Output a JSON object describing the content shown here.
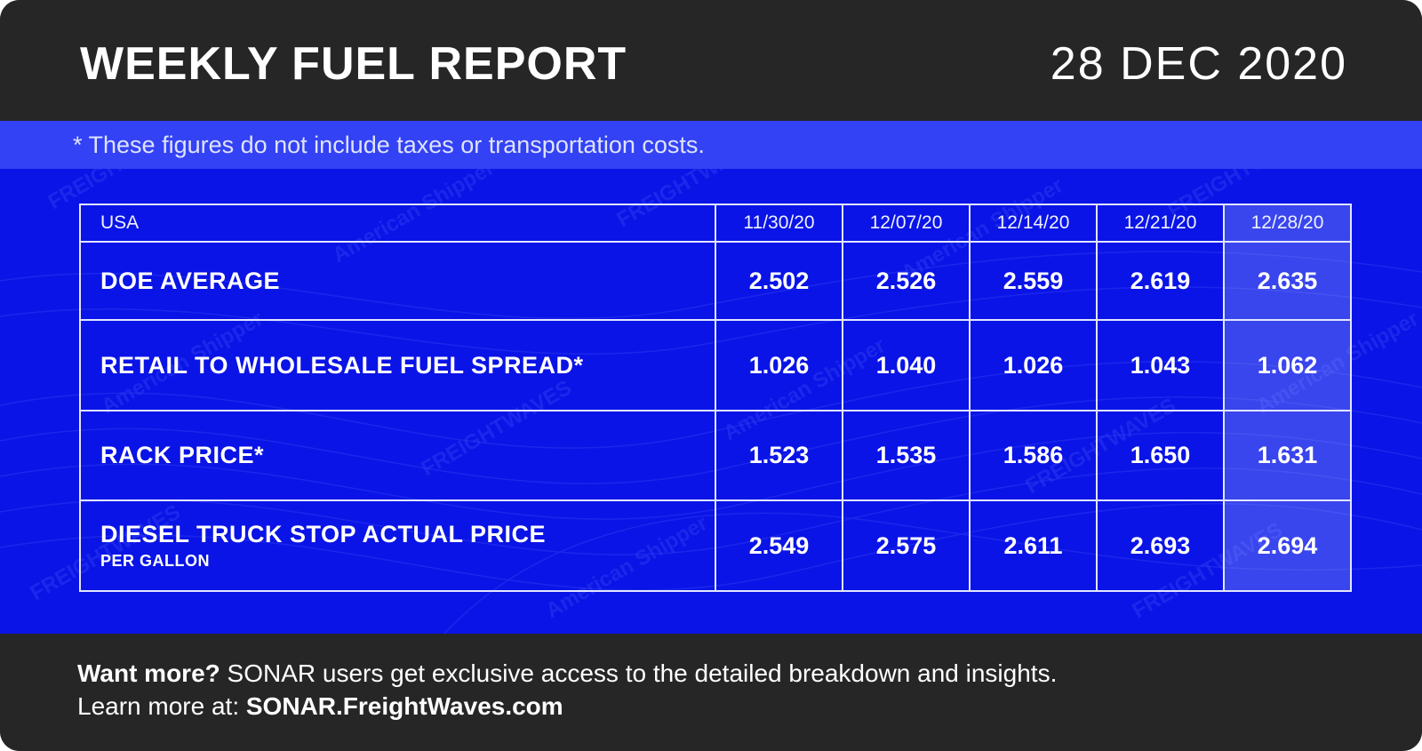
{
  "header": {
    "title": "WEEKLY FUEL REPORT",
    "date": "28 DEC 2020"
  },
  "note": "* These figures do not include taxes or transportation costs.",
  "table": {
    "region": "USA",
    "dates": [
      "11/30/20",
      "12/07/20",
      "12/14/20",
      "12/21/20",
      "12/28/20"
    ],
    "highlighted_column": "12/28/20",
    "rows": [
      {
        "label": "DOE AVERAGE",
        "sublabel": "",
        "values": [
          "2.502",
          "2.526",
          "2.559",
          "2.619",
          "2.635"
        ]
      },
      {
        "label": "RETAIL TO WHOLESALE FUEL SPREAD*",
        "sublabel": "",
        "values": [
          "1.026",
          "1.040",
          "1.026",
          "1.043",
          "1.062"
        ]
      },
      {
        "label": "RACK PRICE*",
        "sublabel": "",
        "values": [
          "1.523",
          "1.535",
          "1.586",
          "1.650",
          "1.631"
        ]
      },
      {
        "label": "DIESEL TRUCK STOP ACTUAL PRICE",
        "sublabel": "PER GALLON",
        "values": [
          "2.549",
          "2.575",
          "2.611",
          "2.693",
          "2.694"
        ]
      }
    ]
  },
  "footer": {
    "line1_bold": "Want more?",
    "line1_rest": " SONAR users get exclusive access to the detailed breakdown and insights.",
    "line2_prefix": "Learn more at: ",
    "line2_link": "SONAR.FreightWaves.com"
  },
  "watermarks": [
    "FREIGHTWAVES",
    "American Shipper"
  ],
  "colors": {
    "dark": "#262626",
    "panel_blue": "#0a14e6",
    "note_band": "#3342f4",
    "highlight": "#5a68f5"
  }
}
